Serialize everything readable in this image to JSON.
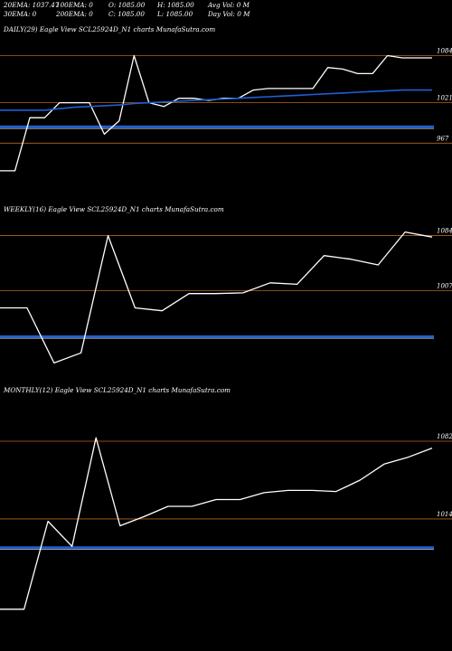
{
  "header": {
    "row1": [
      "20EMA: 1037.47",
      "100EMA: 0",
      "O: 1085.00",
      "H: 1085.00",
      "Avg Vol: 0  M"
    ],
    "row2": [
      "30EMA: 0",
      "200EMA: 0",
      "C: 1085.00",
      "L: 1085.00",
      "Day Vol: 0  M"
    ]
  },
  "colors": {
    "price": "#ffffff",
    "level": "#b5651d",
    "ema": "#1f5fd6",
    "bg": "#000000"
  },
  "chart_data": [
    {
      "type": "line",
      "title": "DAILY(29) Eagle  View  SCL25924D_N1 charts MunafaSutra.com",
      "ylim": [
        890,
        1110
      ],
      "series": [
        {
          "role": "price",
          "values": [
            930,
            930,
            1001,
            1001,
            1021,
            1021,
            1021,
            979,
            997,
            1084,
            1021,
            1016,
            1027,
            1027,
            1024,
            1027,
            1027,
            1038,
            1040,
            1040,
            1040,
            1040,
            1068,
            1066,
            1060,
            1060,
            1084,
            1081,
            1081,
            1081
          ]
        },
        {
          "role": "ema",
          "values": [
            1011,
            1011,
            1011,
            1011,
            1013,
            1015,
            1016,
            1017,
            1018,
            1020,
            1021,
            1022,
            1023,
            1024,
            1025,
            1026,
            1027,
            1028,
            1029,
            1030,
            1031,
            1032,
            1033,
            1034,
            1035,
            1036,
            1037,
            1038,
            1038,
            1038
          ]
        }
      ],
      "levels": [
        {
          "value": 1084,
          "label": "1084"
        },
        {
          "value": 1021,
          "label": "1021"
        },
        {
          "value": 967,
          "label": "967"
        }
      ],
      "ema_flat": 989
    },
    {
      "type": "line",
      "title": "WEEKLY(16) Eagle  View  SCL25924D_N1 charts MunafaSutra.com",
      "ylim": [
        880,
        1110
      ],
      "series": [
        {
          "role": "price",
          "values": [
            983,
            983,
            906,
            920,
            1084,
            983,
            979,
            1003,
            1003,
            1004,
            1018,
            1016,
            1056,
            1051,
            1043,
            1089,
            1082
          ]
        }
      ],
      "levels": [
        {
          "value": 1084,
          "label": "1084"
        },
        {
          "value": 1007,
          "label": "1007"
        }
      ],
      "ema_flat": 943
    },
    {
      "type": "line",
      "title": "MONTHLY(12) Eagle  View  SCL25924D_N1 charts MunafaSutra.com",
      "ylim": [
        900,
        1120
      ],
      "series": [
        {
          "role": "price",
          "values": [
            935,
            935,
            1012,
            990,
            1085,
            1008,
            1016,
            1025,
            1025,
            1031,
            1031,
            1037,
            1039,
            1039,
            1038,
            1048,
            1062,
            1068,
            1076
          ]
        }
      ],
      "levels": [
        {
          "value": 1082,
          "label": "1082"
        },
        {
          "value": 1014,
          "label": "1014"
        }
      ],
      "ema_flat": 989
    }
  ]
}
